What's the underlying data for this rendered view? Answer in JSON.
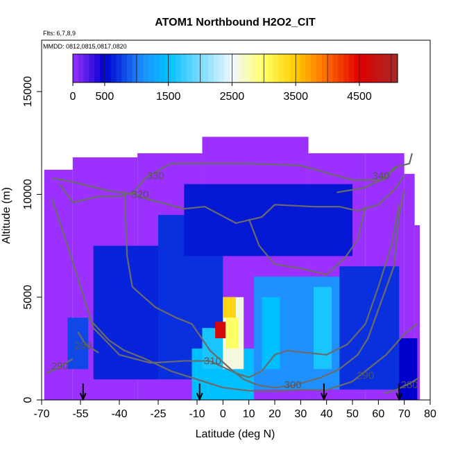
{
  "chart_data": {
    "type": "heatmap",
    "title": "ATOM1 Northbound H2O2_CIT",
    "subtitle_flights": "Flts: 6,7,8,9",
    "subtitle_dates": "MMDD: 0812,0815,0817,0820",
    "xlabel": "Latitude (deg N)",
    "ylabel": "Altitude (m)",
    "xlim": [
      -70,
      80
    ],
    "ylim": [
      0,
      17500
    ],
    "x_ticks": [
      -70,
      -55,
      -40,
      -25,
      -10,
      0,
      10,
      20,
      30,
      40,
      50,
      60,
      70,
      80
    ],
    "x_tick_labels": [
      "-70",
      "-55",
      "-40",
      "-25",
      "-10",
      "0",
      "10",
      "20",
      "30",
      "40",
      "50",
      "60",
      "70",
      "80"
    ],
    "y_ticks": [
      0,
      5000,
      10000,
      15000
    ],
    "y_tick_labels": [
      "0",
      "5000",
      "10000",
      "15000"
    ],
    "colorbar": {
      "range": [
        0,
        5100
      ],
      "ticks": [
        0,
        500,
        1500,
        2500,
        3500,
        4500
      ],
      "tick_labels": [
        "0",
        "500",
        "1500",
        "2500",
        "3500",
        "4500"
      ],
      "stops": [
        {
          "v": 0,
          "color": "#9b30ff"
        },
        {
          "v": 500,
          "color": "#0000cd"
        },
        {
          "v": 1100,
          "color": "#1e90ff"
        },
        {
          "v": 1500,
          "color": "#00bfff"
        },
        {
          "v": 2500,
          "color": "#f0f8ff"
        },
        {
          "v": 3000,
          "color": "#ffff66"
        },
        {
          "v": 3500,
          "color": "#ffcc00"
        },
        {
          "v": 4000,
          "color": "#ff6600"
        },
        {
          "v": 4500,
          "color": "#e00000"
        },
        {
          "v": 5100,
          "color": "#a52a2a"
        }
      ]
    },
    "flight_arrows_lat": [
      -54,
      -9,
      39,
      68
    ],
    "coverage": [
      {
        "lat": [
          -69,
          -58
        ],
        "alt": [
          0,
          11200
        ]
      },
      {
        "lat": [
          -58,
          -33
        ],
        "alt": [
          0,
          11800
        ]
      },
      {
        "lat": [
          -33,
          -8
        ],
        "alt": [
          0,
          12000
        ]
      },
      {
        "lat": [
          -8,
          33
        ],
        "alt": [
          0,
          12800
        ]
      },
      {
        "lat": [
          33,
          55
        ],
        "alt": [
          0,
          12000
        ]
      },
      {
        "lat": [
          55,
          70
        ],
        "alt": [
          0,
          12000
        ]
      },
      {
        "lat": [
          70,
          74
        ],
        "alt": [
          0,
          11000
        ]
      },
      {
        "lat": [
          74,
          76
        ],
        "alt": [
          0,
          8500
        ]
      }
    ],
    "features": [
      {
        "lat": [
          -60,
          -52
        ],
        "alt": [
          1500,
          4000
        ],
        "value": 800
      },
      {
        "lat": [
          -50,
          -25
        ],
        "alt": [
          1000,
          7500
        ],
        "value": 650
      },
      {
        "lat": [
          -25,
          0
        ],
        "alt": [
          1000,
          9000
        ],
        "value": 700
      },
      {
        "lat": [
          -12,
          12
        ],
        "alt": [
          0,
          2500
        ],
        "value": 1500
      },
      {
        "lat": [
          -8,
          5
        ],
        "alt": [
          1500,
          3500
        ],
        "value": 1600
      },
      {
        "lat": [
          0,
          8
        ],
        "alt": [
          1500,
          5000
        ],
        "value": 2600
      },
      {
        "lat": [
          0,
          5
        ],
        "alt": [
          4000,
          5000
        ],
        "value": 3400
      },
      {
        "lat": [
          -3,
          1
        ],
        "alt": [
          3000,
          3800
        ],
        "value": 4600
      },
      {
        "lat": [
          1,
          6
        ],
        "alt": [
          2500,
          4000
        ],
        "value": 3000
      },
      {
        "lat": [
          12,
          45
        ],
        "alt": [
          500,
          6000
        ],
        "value": 1100
      },
      {
        "lat": [
          15,
          22
        ],
        "alt": [
          1500,
          5000
        ],
        "value": 1500
      },
      {
        "lat": [
          35,
          42
        ],
        "alt": [
          1500,
          5500
        ],
        "value": 1600
      },
      {
        "lat": [
          45,
          68
        ],
        "alt": [
          500,
          6500
        ],
        "value": 700
      },
      {
        "lat": [
          68,
          75
        ],
        "alt": [
          0,
          3000
        ],
        "value": 500
      },
      {
        "lat": [
          -15,
          50
        ],
        "alt": [
          7000,
          10500
        ],
        "value": 600
      }
    ],
    "contours": [
      {
        "label": "330",
        "label_at": [
          -26,
          10900
        ],
        "points": [
          [
            -66,
            10800
          ],
          [
            -58,
            10600
          ],
          [
            -45,
            10200
          ],
          [
            -35,
            10000
          ],
          [
            -30,
            10800
          ],
          [
            -20,
            11500
          ],
          [
            -5,
            11500
          ],
          [
            10,
            11500
          ],
          [
            30,
            11400
          ],
          [
            50,
            10700
          ],
          [
            62,
            10700
          ],
          [
            66,
            11300
          ],
          [
            72,
            11500
          ],
          [
            73,
            12000
          ]
        ]
      },
      {
        "label": "320",
        "label_at": [
          -32,
          10000
        ],
        "points": [
          [
            -63,
            10500
          ],
          [
            -58,
            9600
          ],
          [
            -48,
            9900
          ],
          [
            -40,
            9900
          ],
          [
            -35,
            10100
          ],
          [
            -30,
            9800
          ],
          [
            -15,
            9300
          ],
          [
            -7,
            9400
          ],
          [
            5,
            8600
          ],
          [
            15,
            8900
          ],
          [
            20,
            9500
          ],
          [
            35,
            9400
          ],
          [
            45,
            9400
          ],
          [
            52,
            9200
          ],
          [
            60,
            9500
          ],
          [
            66,
            10200
          ],
          [
            70,
            10900
          ]
        ]
      },
      {
        "label": "340",
        "label_at": [
          61,
          10900
        ],
        "points": [
          [
            44,
            10100
          ],
          [
            54,
            10300
          ],
          [
            61,
            10700
          ],
          [
            67,
            11300
          ]
        ]
      },
      {
        "label": "310",
        "label_at": [
          -4,
          1900
        ],
        "points": [
          [
            -66,
            9800
          ],
          [
            -60,
            7500
          ],
          [
            -55,
            5500
          ],
          [
            -50,
            3500
          ],
          [
            -40,
            2200
          ],
          [
            -28,
            1800
          ],
          [
            -15,
            1900
          ],
          [
            -5,
            1900
          ],
          [
            5,
            1300
          ],
          [
            10,
            1100
          ],
          [
            15,
            1400
          ],
          [
            20,
            2200
          ],
          [
            25,
            2400
          ],
          [
            32,
            2300
          ],
          [
            40,
            2200
          ],
          [
            48,
            2700
          ],
          [
            55,
            3700
          ],
          [
            60,
            5500
          ],
          [
            65,
            7500
          ],
          [
            68,
            9500
          ]
        ]
      },
      {
        "label": "300",
        "label_at": [
          27,
          750
        ],
        "points": [
          [
            -38,
            10200
          ],
          [
            -37,
            7000
          ],
          [
            -35,
            5500
          ],
          [
            -26,
            4500
          ],
          [
            -18,
            4000
          ],
          [
            -12,
            3700
          ],
          [
            -5,
            2400
          ],
          [
            3,
            1500
          ],
          [
            8,
            1000
          ],
          [
            14,
            700
          ],
          [
            20,
            600
          ],
          [
            27,
            700
          ],
          [
            38,
            1100
          ],
          [
            45,
            1500
          ],
          [
            52,
            2200
          ],
          [
            56,
            3000
          ],
          [
            64,
            5800
          ],
          [
            66,
            6500
          ],
          [
            68,
            9000
          ],
          [
            70,
            10200
          ]
        ]
      },
      {
        "label": "290",
        "label_at": [
          55,
          1200
        ],
        "points": [
          [
            -52,
            4000
          ],
          [
            -44,
            2900
          ],
          [
            -38,
            2400
          ],
          [
            -30,
            2000
          ],
          [
            -20,
            1400
          ],
          [
            -10,
            1000
          ],
          [
            0,
            600
          ],
          [
            10,
            450
          ],
          [
            20,
            430
          ],
          [
            30,
            500
          ],
          [
            40,
            480
          ],
          [
            50,
            900
          ],
          [
            56,
            1500
          ],
          [
            63,
            2200
          ],
          [
            70,
            3200
          ],
          [
            75,
            3700
          ]
        ]
      },
      {
        "label": "290",
        "label_at": [
          -63,
          1650
        ],
        "points": [
          [
            -68,
            1300
          ],
          [
            -63,
            1600
          ],
          [
            -58,
            2000
          ]
        ]
      },
      {
        "label": "280",
        "label_at": [
          72,
          750
        ],
        "points": [
          [
            62,
            300
          ],
          [
            67,
            500
          ],
          [
            72,
            800
          ],
          [
            76,
            1100
          ]
        ]
      },
      {
        "label": "290",
        "label_at": [
          -54,
          2650
        ],
        "points": [
          [
            -56,
            3300
          ],
          [
            -53,
            2700
          ],
          [
            -48,
            2300
          ]
        ]
      },
      {
        "label": "",
        "points": [
          [
            10,
            8800
          ],
          [
            14,
            7500
          ],
          [
            20,
            6600
          ],
          [
            30,
            6400
          ],
          [
            40,
            6100
          ],
          [
            47,
            6900
          ],
          [
            52,
            7800
          ],
          [
            55,
            9400
          ]
        ]
      }
    ]
  }
}
